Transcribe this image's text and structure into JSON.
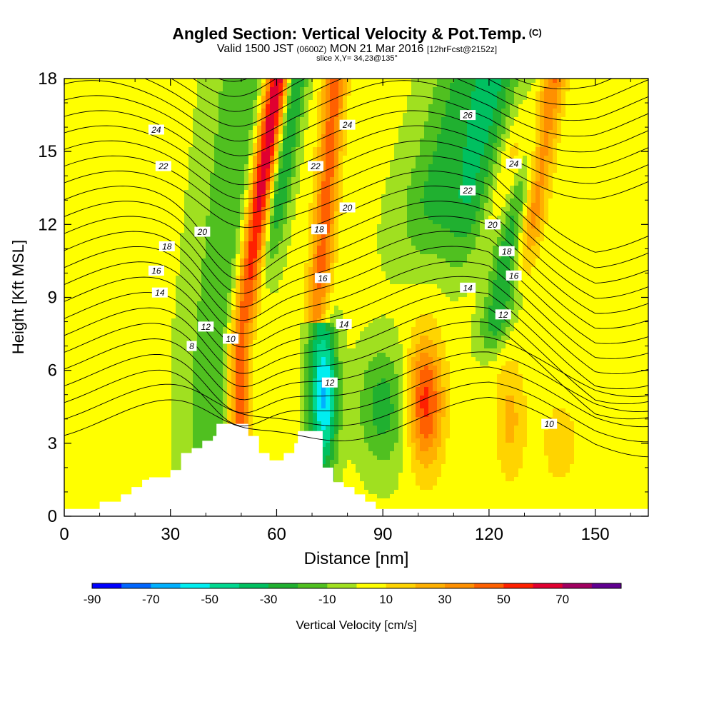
{
  "title": {
    "main": "Angled Section: Vertical Velocity & Pot.Temp.",
    "copyright": "(C)",
    "valid_prefix": "Valid 1500 JST",
    "valid_utc": "(0600Z)",
    "valid_date": "MON 21 Mar 2016",
    "forecast": "[12hrFcst@2152z]",
    "slice": "slice X,Y= 34,23@135°"
  },
  "chart_data": {
    "type": "heatmap",
    "xlabel": "Distance [nm]",
    "ylabel": "Height [Kft MSL]",
    "xlim": [
      0,
      165
    ],
    "ylim": [
      0,
      18
    ],
    "xticks": [
      0,
      30,
      60,
      90,
      120,
      150
    ],
    "yticks": [
      0,
      3,
      6,
      9,
      12,
      15,
      18
    ],
    "colorbar": {
      "label": "Vertical Velocity [cm/s]",
      "tick_labels": [
        "-90",
        "-70",
        "-50",
        "-30",
        "-10",
        "10",
        "30",
        "50",
        "70"
      ],
      "levels": [
        -90,
        -80,
        -70,
        -60,
        -50,
        -40,
        -30,
        -20,
        -10,
        0,
        10,
        20,
        30,
        40,
        50,
        60,
        70,
        80
      ],
      "colors": [
        "#0000ff",
        "#0066ff",
        "#00b0ff",
        "#00eef0",
        "#00d890",
        "#00c060",
        "#20b030",
        "#50c020",
        "#a0e020",
        "#ffff00",
        "#ffd400",
        "#ffb000",
        "#ff9000",
        "#ff6000",
        "#ff2000",
        "#e00030",
        "#a00060",
        "#600090"
      ]
    },
    "terrain_profile": {
      "x": [
        0,
        10,
        16,
        19,
        22,
        24,
        30,
        33,
        36,
        39,
        42,
        43,
        52,
        55,
        58,
        62,
        65,
        66,
        73,
        76,
        79,
        82,
        85,
        88,
        93
      ],
      "height": [
        0.3,
        0.6,
        0.9,
        1.2,
        1.5,
        1.6,
        1.9,
        2.6,
        2.8,
        3.1,
        3.3,
        3.8,
        3.3,
        2.6,
        2.3,
        2.6,
        3.0,
        3.5,
        2.0,
        1.4,
        1.2,
        0.9,
        0.6,
        0.3,
        0.3
      ]
    },
    "theta_contours": [
      {
        "label": "8",
        "x": 36,
        "y": 7.0
      },
      {
        "label": "10",
        "x": 47,
        "y": 7.3
      },
      {
        "label": "10",
        "x": 137,
        "y": 3.8
      },
      {
        "label": "12",
        "x": 40,
        "y": 7.8
      },
      {
        "label": "12",
        "x": 75,
        "y": 5.5
      },
      {
        "label": "12",
        "x": 124,
        "y": 8.3
      },
      {
        "label": "14",
        "x": 27,
        "y": 9.2
      },
      {
        "label": "14",
        "x": 79,
        "y": 7.9
      },
      {
        "label": "14",
        "x": 114,
        "y": 9.4
      },
      {
        "label": "16",
        "x": 26,
        "y": 10.1
      },
      {
        "label": "16",
        "x": 73,
        "y": 9.8
      },
      {
        "label": "16",
        "x": 127,
        "y": 9.9
      },
      {
        "label": "18",
        "x": 29,
        "y": 11.1
      },
      {
        "label": "18",
        "x": 72,
        "y": 11.8
      },
      {
        "label": "18",
        "x": 125,
        "y": 10.9
      },
      {
        "label": "20",
        "x": 39,
        "y": 11.7
      },
      {
        "label": "20",
        "x": 80,
        "y": 12.7
      },
      {
        "label": "20",
        "x": 121,
        "y": 12.0
      },
      {
        "label": "22",
        "x": 28,
        "y": 14.4
      },
      {
        "label": "22",
        "x": 71,
        "y": 14.4
      },
      {
        "label": "22",
        "x": 114,
        "y": 13.4
      },
      {
        "label": "24",
        "x": 26,
        "y": 15.9
      },
      {
        "label": "24",
        "x": 80,
        "y": 16.1
      },
      {
        "label": "24",
        "x": 127,
        "y": 14.5
      },
      {
        "label": "26",
        "x": 114,
        "y": 16.5
      }
    ]
  }
}
